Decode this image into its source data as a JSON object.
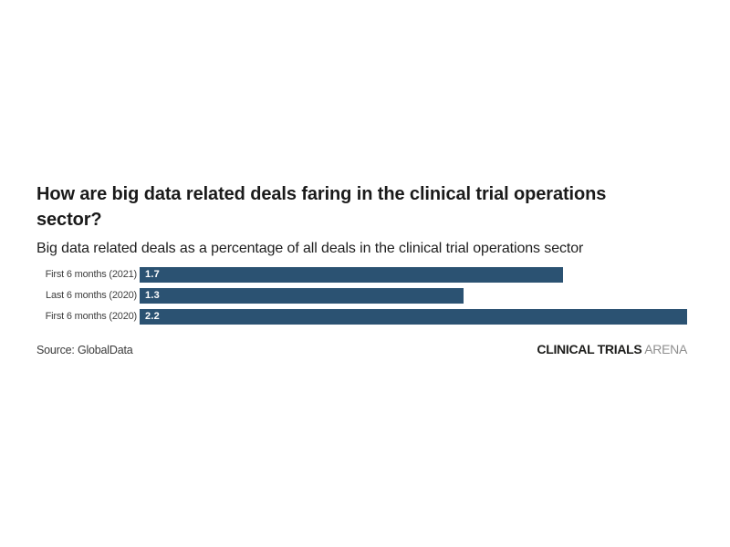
{
  "page": {
    "background_color": "#ffffff"
  },
  "header": {
    "title": "How are big data related deals faring in the clinical trial operations sector?",
    "subtitle": "Big data related deals as a percentage of all deals in the clinical trial operations sector"
  },
  "chart_data": {
    "type": "bar",
    "orientation": "horizontal",
    "title": "How are big data related deals faring in the clinical trial operations sector?",
    "subtitle": "Big data related deals as a percentage of all deals in the clinical trial operations sector",
    "categories": [
      "First 6 months (2021)",
      "Last 6 months (2020)",
      "First 6 months (2020)"
    ],
    "values": [
      1.7,
      1.3,
      2.2
    ],
    "value_labels": [
      "1.7",
      "1.3",
      "2.2"
    ],
    "xlabel": "",
    "ylabel": "",
    "xlim": [
      0,
      2.2
    ],
    "grid": false,
    "legend": false,
    "bar_color": "#2b5272",
    "value_label_color": "#ffffff"
  },
  "footer": {
    "source": "Source: GlobalData",
    "brand_bold": "CLINICAL TRIALS",
    "brand_light": "ARENA"
  }
}
